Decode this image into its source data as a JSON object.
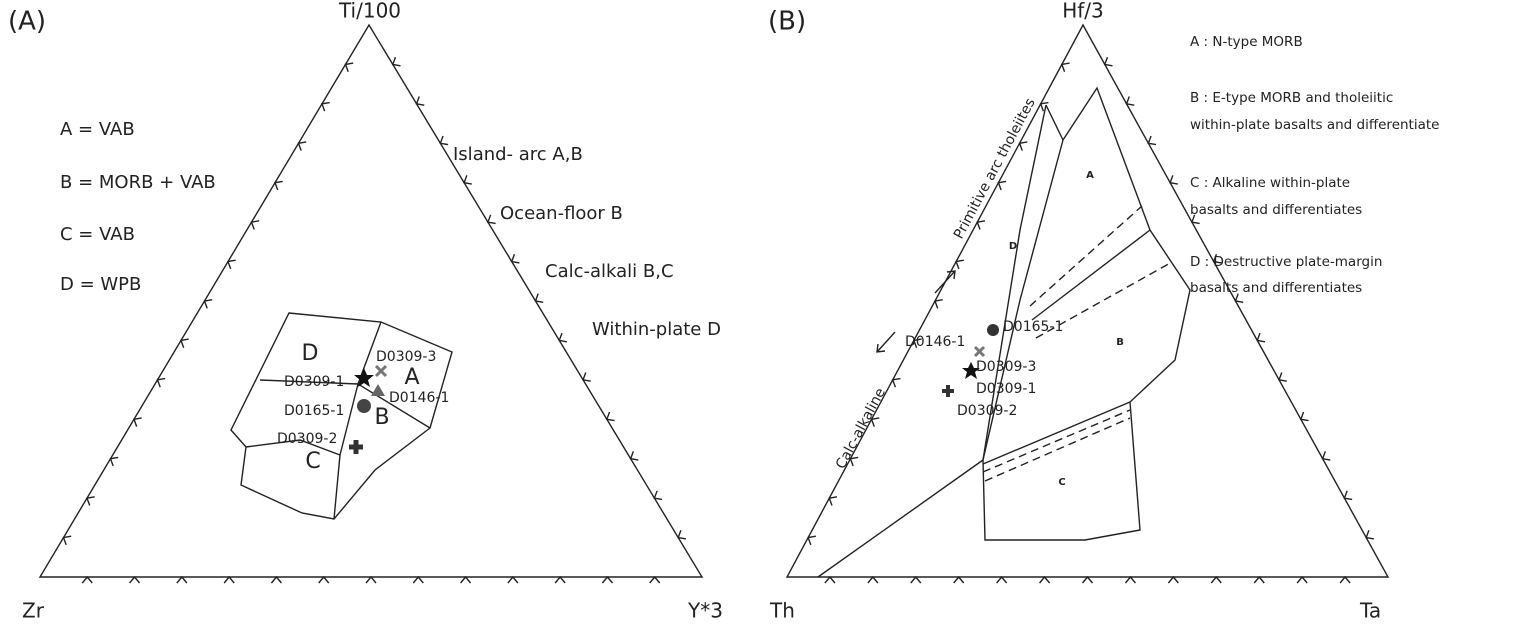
{
  "panel_a": {
    "label": "(A)",
    "apex_top": "Ti/100",
    "apex_left": "Zr",
    "apex_right": "Y*3",
    "legend": [
      "A = VAB",
      "B = MORB + VAB",
      "C = VAB",
      "D = WPB"
    ],
    "settings": [
      "Island- arc A,B",
      "Ocean-floor B",
      "Calc-alkali B,C",
      "Within-plate D"
    ],
    "fields": [
      "D",
      "A",
      "B",
      "C"
    ],
    "samples": [
      "D0309-3",
      "D0309-1",
      "D0146-1",
      "D0165-1",
      "D0309-2"
    ]
  },
  "panel_b": {
    "label": "(B)",
    "apex_top": "Hf/3",
    "apex_left": "Th",
    "apex_right": "Ta",
    "legend": [
      "A : N-type MORB",
      "B : E-type MORB and tholeiitic",
      "within-plate basalts and differentiate",
      "C : Alkaline within-plate",
      "basalts and differentiates",
      "D : Destructive plate-margin",
      "basalts and differentiates"
    ],
    "trends": [
      "Primitive arc tholeiites",
      "Calc-alkaline"
    ],
    "fields": [
      "A",
      "B",
      "C",
      "D"
    ],
    "samples": [
      "D0165-1",
      "D0146-1",
      "D0309-3",
      "D0309-1",
      "D0309-2"
    ]
  }
}
